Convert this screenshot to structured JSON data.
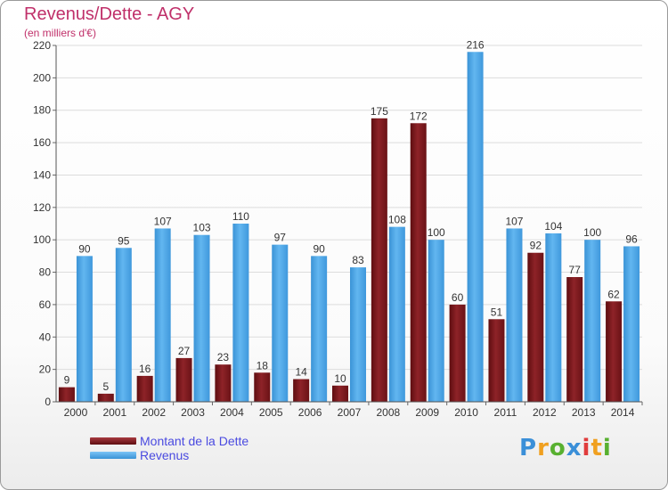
{
  "title": "Revenus/Dette - AGY",
  "subtitle": "(en milliers d'€)",
  "legend": {
    "debt_label": "Montant de la Dette",
    "revenue_label": "Revenus"
  },
  "logo_text": "Proxiti",
  "colors": {
    "title": "#c0306a",
    "debt": "#7a1418",
    "debt_light": "#a83a40",
    "revenue": "#4aa3e4",
    "revenue_light": "#6cbcf4",
    "legend_text": "#4a4ae0"
  },
  "chart_data": {
    "type": "bar",
    "title": "Revenus/Dette - AGY",
    "subtitle": "(en milliers d'€)",
    "xlabel": "",
    "ylabel": "",
    "ylim": [
      0,
      220
    ],
    "yticks": [
      0,
      20,
      40,
      60,
      80,
      100,
      120,
      140,
      160,
      180,
      200,
      220
    ],
    "grid": true,
    "legend_position": "bottom-left",
    "categories": [
      "2000",
      "2001",
      "2002",
      "2003",
      "2004",
      "2005",
      "2006",
      "2007",
      "2008",
      "2009",
      "2010",
      "2011",
      "2012",
      "2013",
      "2014"
    ],
    "series": [
      {
        "name": "Montant de la Dette",
        "values": [
          9,
          5,
          16,
          27,
          23,
          18,
          14,
          10,
          175,
          172,
          60,
          51,
          92,
          77,
          62
        ]
      },
      {
        "name": "Revenus",
        "values": [
          90,
          95,
          107,
          103,
          110,
          97,
          90,
          83,
          108,
          100,
          216,
          107,
          104,
          100,
          96
        ]
      }
    ]
  }
}
